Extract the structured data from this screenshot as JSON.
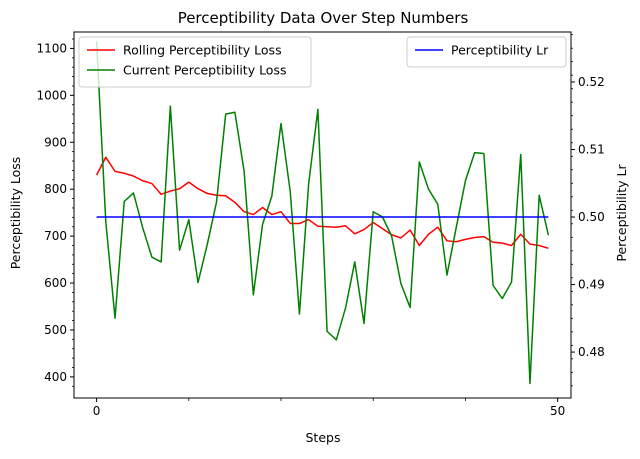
{
  "chart_data": {
    "type": "line",
    "title": "Perceptibility Data Over Step Numbers",
    "xlabel": "Steps",
    "ylabel_left": "Perceptibility Loss",
    "ylabel_right": "Perceptibility Lr",
    "xlim": [
      -2.45,
      51.45
    ],
    "ylim_left": [
      355,
      1135
    ],
    "ylim_right": [
      0.4732,
      0.5274
    ],
    "x_ticks": [
      0,
      50
    ],
    "x_minor_ticks": [
      10,
      20,
      30,
      40
    ],
    "y_left_ticks": [
      400,
      500,
      600,
      700,
      800,
      900,
      1000,
      1100
    ],
    "y_right_ticks": [
      0.48,
      0.49,
      0.5,
      0.51,
      0.52
    ],
    "y_right_tick_labels": [
      "0.48",
      "0.49",
      "0.50",
      "0.51",
      "0.52"
    ],
    "grid": false,
    "legend_left_placement": "top-left",
    "legend_right_placement": "top-right",
    "x": [
      0,
      1,
      2,
      3,
      4,
      5,
      6,
      7,
      8,
      9,
      10,
      11,
      12,
      13,
      14,
      15,
      16,
      17,
      18,
      19,
      20,
      21,
      22,
      23,
      24,
      25,
      26,
      27,
      28,
      29,
      30,
      31,
      32,
      33,
      34,
      35,
      36,
      37,
      38,
      39,
      40,
      41,
      42,
      43,
      44,
      45,
      46,
      47,
      48,
      49
    ],
    "series": [
      {
        "name": "Rolling Perceptibility Loss",
        "axis": "left",
        "color": "#ff0000",
        "values": [
          830,
          868,
          838,
          834,
          828,
          818,
          812,
          789,
          796,
          801,
          815,
          801,
          791,
          787,
          786,
          772,
          752,
          746,
          761,
          746,
          752,
          727,
          727,
          735,
          721,
          720,
          719,
          722,
          705,
          714,
          729,
          716,
          703,
          696,
          713,
          680,
          704,
          719,
          690,
          688,
          693,
          697,
          699,
          687,
          685,
          680,
          704,
          683,
          680,
          674
        ]
      },
      {
        "name": "Current Perceptibility Loss",
        "axis": "left",
        "color": "#008000",
        "values": [
          1115,
          730,
          525,
          774,
          792,
          718,
          655,
          645,
          977,
          670,
          735,
          601,
          682,
          772,
          960,
          964,
          838,
          575,
          725,
          785,
          940,
          795,
          534,
          812,
          970,
          497,
          479,
          547,
          645,
          514,
          752,
          741,
          700,
          599,
          548,
          858,
          800,
          768,
          617,
          718,
          818,
          878,
          876,
          595,
          567,
          602,
          874,
          386,
          787,
          702
        ]
      },
      {
        "name": "Perceptibility Lr",
        "axis": "right",
        "color": "#0000ff",
        "values": [
          0.5,
          0.5,
          0.5,
          0.5,
          0.5,
          0.5,
          0.5,
          0.5,
          0.5,
          0.5,
          0.5,
          0.5,
          0.5,
          0.5,
          0.5,
          0.5,
          0.5,
          0.5,
          0.5,
          0.5,
          0.5,
          0.5,
          0.5,
          0.5,
          0.5,
          0.5,
          0.5,
          0.5,
          0.5,
          0.5,
          0.5,
          0.5,
          0.5,
          0.5,
          0.5,
          0.5,
          0.5,
          0.5,
          0.5,
          0.5,
          0.5,
          0.5,
          0.5,
          0.5,
          0.5,
          0.5,
          0.5,
          0.5,
          0.5,
          0.5
        ]
      }
    ]
  }
}
